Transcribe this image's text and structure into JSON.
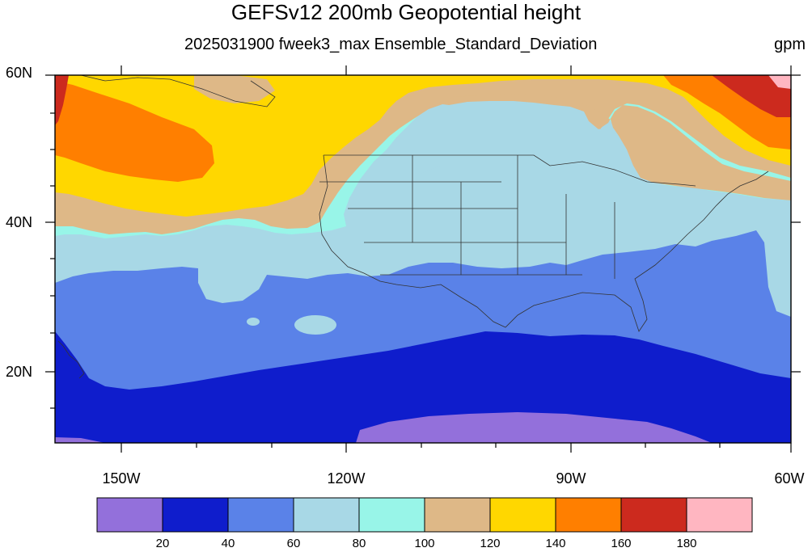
{
  "title": "GEFSv12 200mb Geopotential height",
  "subtitle": "2025031900 fweek3_max Ensemble_Standard_Deviation",
  "units": "gpm",
  "lat_labels": [
    "60N",
    "40N",
    "20N"
  ],
  "lon_labels": [
    "150W",
    "120W",
    "90W",
    "60W"
  ],
  "colorbar": {
    "ticks": [
      "20",
      "40",
      "60",
      "80",
      "100",
      "120",
      "140",
      "160",
      "180"
    ],
    "colors": [
      "#9370db",
      "#0f1dcc",
      "#5a82e8",
      "#a8d8e6",
      "#98f5e8",
      "#deb887",
      "#ffd700",
      "#ff7f00",
      "#cc2a1e",
      "#ffb6c1"
    ]
  },
  "domain": {
    "lon_range": [
      -159,
      -60
    ],
    "lat_range": [
      10,
      60
    ]
  }
}
